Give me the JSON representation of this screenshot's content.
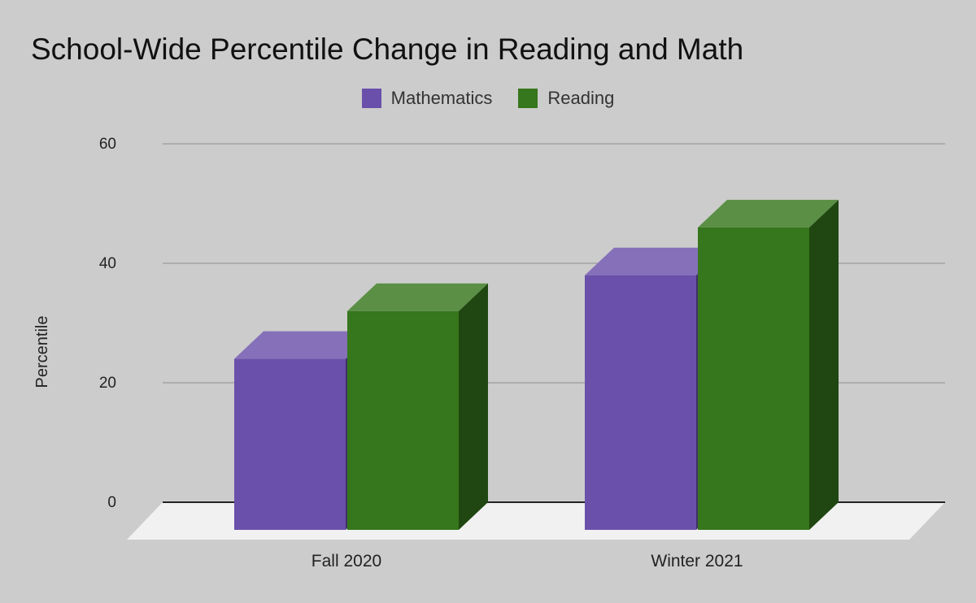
{
  "chart_data": {
    "type": "bar",
    "title": "School-Wide Percentile Change in Reading and Math",
    "xlabel": "",
    "ylabel": "Percentile",
    "categories": [
      "Fall 2020",
      "Winter 2021"
    ],
    "series": [
      {
        "name": "Mathematics",
        "values": [
          24,
          38
        ],
        "color": "#6a50aa"
      },
      {
        "name": "Reading",
        "values": [
          32,
          46
        ],
        "color": "#36761c"
      }
    ],
    "ylim": [
      0,
      60
    ],
    "yticks": [
      0,
      20,
      40,
      60
    ],
    "grid": true,
    "legend": "top-center",
    "style": "3d-bars"
  }
}
